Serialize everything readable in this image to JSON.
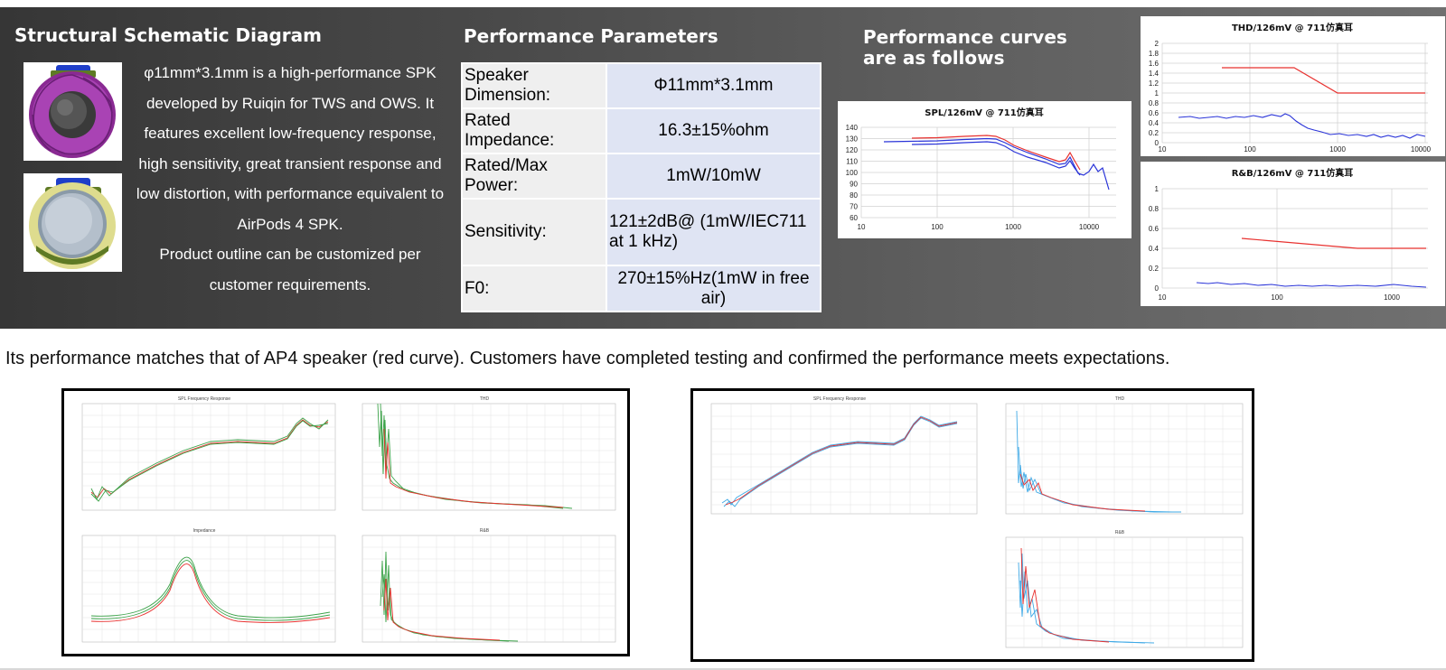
{
  "headings": {
    "structural": "Structural Schematic Diagram",
    "parameters": "Performance Parameters",
    "curves_line1": "Performance curves",
    "curves_line2": "are as follows"
  },
  "description": {
    "line1": "φ11mm*3.1mm is a high-performance SPK",
    "line2": "developed by Ruiqin for TWS and OWS. It",
    "line3": "features excellent low-frequency response,",
    "line4": "high sensitivity, great transient response and",
    "line5": "low distortion, with performance equivalent to",
    "line6": "AirPods 4 SPK.",
    "line7": "Product outline can be customized per",
    "line8": "customer requirements."
  },
  "params": [
    {
      "label": "Speaker Dimension:",
      "value": "Φ11mm*3.1mm"
    },
    {
      "label": "Rated Impedance:",
      "value": "16.3±15%ohm"
    },
    {
      "label": "Rated/Max Power:",
      "value": "1mW/10mW"
    },
    {
      "label": "Sensitivity:",
      "value": "121±2dB@ (1mW/IEC711 at 1 kHz)"
    },
    {
      "label": "F0:",
      "value": "270±15%Hz(1mW in free air)"
    }
  ],
  "charts": {
    "spl": {
      "title": "SPL/126mV @ 711仿真耳",
      "y_ticks": [
        "140",
        "130",
        "120",
        "110",
        "100",
        "90",
        "80",
        "70",
        "60"
      ],
      "x_ticks": [
        "10",
        "100",
        "1000",
        "10000"
      ]
    },
    "thd": {
      "title": "THD/126mV @ 711仿真耳",
      "y_ticks": [
        "2",
        "1.8",
        "1.6",
        "1.4",
        "1.2",
        "1",
        "0.8",
        "0.6",
        "0.4",
        "0.2",
        "0"
      ],
      "x_ticks": [
        "10",
        "100",
        "1000",
        "10000"
      ]
    },
    "rb": {
      "title": "R&B/126mV @ 711仿真耳",
      "y_ticks": [
        "1",
        "0.8",
        "0.6",
        "0.4",
        "0.2",
        "0"
      ],
      "x_ticks": [
        "10",
        "100",
        "1000"
      ]
    }
  },
  "note": "Its performance matches that of AP4 speaker (red curve). Customers have completed testing and confirmed the performance meets expectations.",
  "measurement_panels": {
    "left": [
      "SPL Frequency Response",
      "THD",
      "Impedance",
      "R&B"
    ],
    "right": [
      "SPL Frequency Response",
      "THD",
      "R&B"
    ]
  },
  "colors": {
    "curve_red": "#e8312f",
    "curve_blue": "#2a34d8",
    "curve_green": "#3da34a",
    "curve_cyan": "#3fa9e6"
  }
}
